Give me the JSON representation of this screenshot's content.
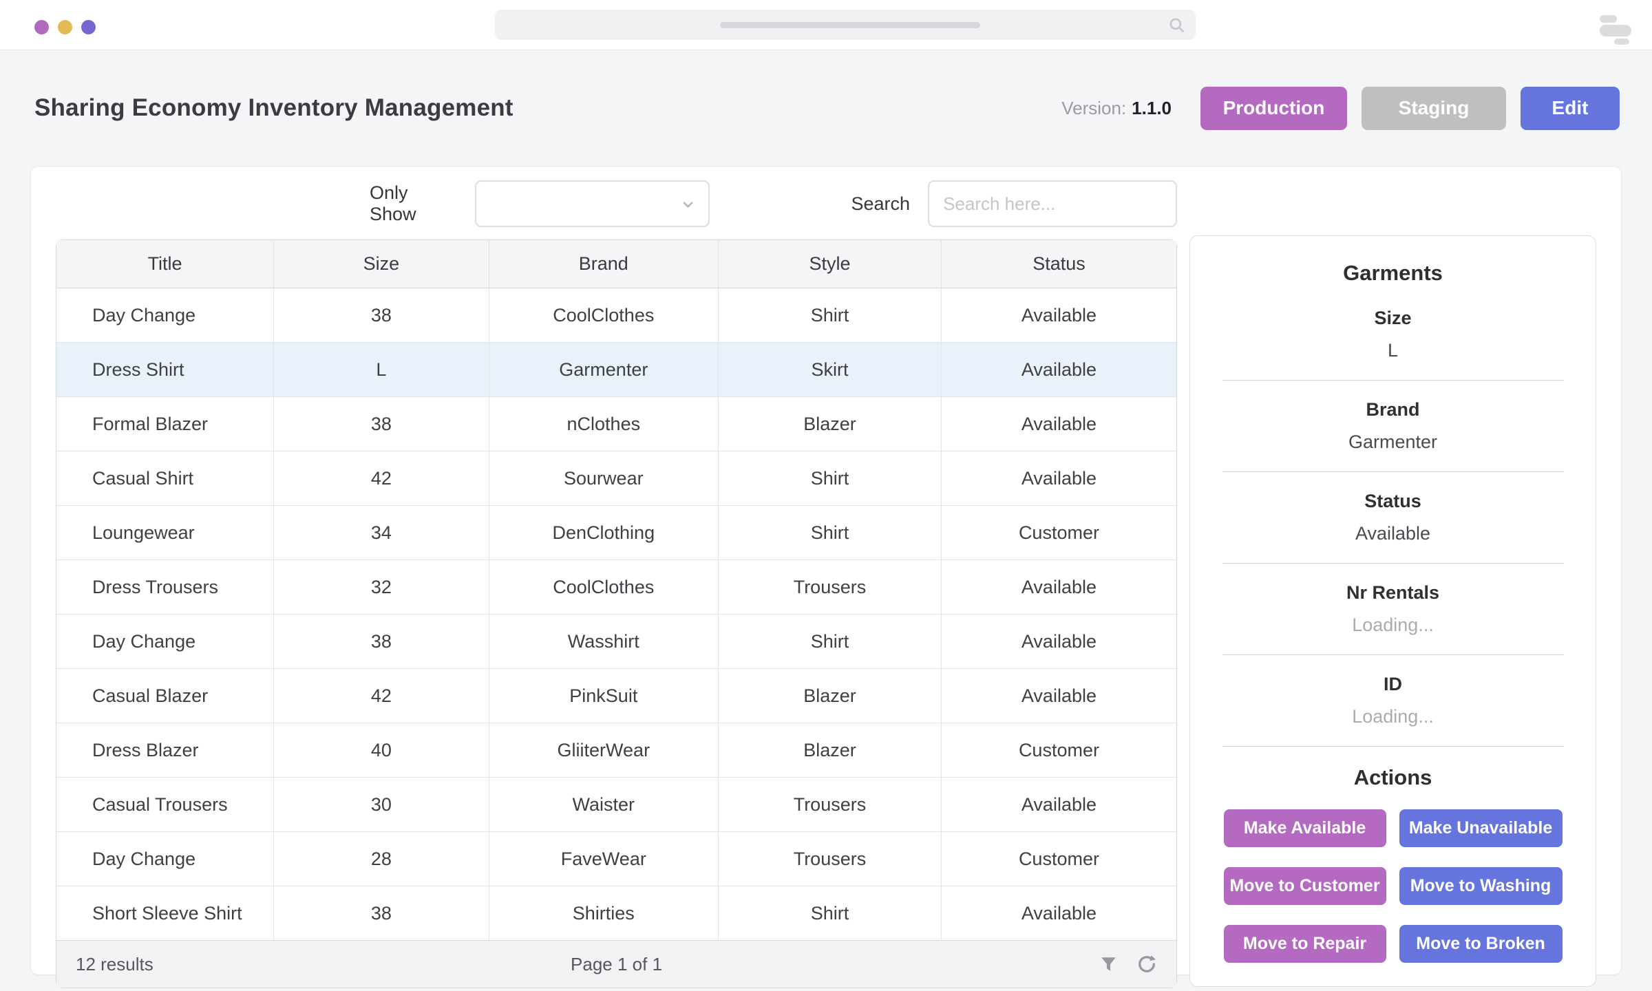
{
  "colors": {
    "purple": "#b46ac1",
    "indigo": "#6674de",
    "staging_gray": "#bfbfc2",
    "selected_row": "#e9f1fb",
    "dot_left": "#b169bd",
    "dot_middle": "#e2bb55",
    "dot_right": "#7568d2"
  },
  "header": {
    "title": "Sharing Economy Inventory Management",
    "version_label": "Version:",
    "version_value": "1.1.0",
    "production_button": "Production",
    "staging_button": "Staging",
    "edit_button": "Edit"
  },
  "filters": {
    "only_show_label": "Only Show",
    "search_label": "Search",
    "search_placeholder": "Search here..."
  },
  "table": {
    "columns": [
      "Title",
      "Size",
      "Brand",
      "Style",
      "Status"
    ],
    "rows": [
      {
        "title": "Day Change",
        "size": "38",
        "brand": "CoolClothes",
        "style": "Shirt",
        "status": "Available",
        "selected": false
      },
      {
        "title": "Dress Shirt",
        "size": "L",
        "brand": "Garmenter",
        "style": "Skirt",
        "status": "Available",
        "selected": true
      },
      {
        "title": "Formal Blazer",
        "size": "38",
        "brand": "nClothes",
        "style": "Blazer",
        "status": "Available",
        "selected": false
      },
      {
        "title": "Casual Shirt",
        "size": "42",
        "brand": "Sourwear",
        "style": "Shirt",
        "status": "Available",
        "selected": false
      },
      {
        "title": "Loungewear",
        "size": "34",
        "brand": "DenClothing",
        "style": "Shirt",
        "status": "Customer",
        "selected": false
      },
      {
        "title": "Dress Trousers",
        "size": "32",
        "brand": "CoolClothes",
        "style": "Trousers",
        "status": "Available",
        "selected": false
      },
      {
        "title": "Day Change",
        "size": "38",
        "brand": "Wasshirt",
        "style": "Shirt",
        "status": "Available",
        "selected": false
      },
      {
        "title": "Casual Blazer",
        "size": "42",
        "brand": "PinkSuit",
        "style": "Blazer",
        "status": "Available",
        "selected": false
      },
      {
        "title": "Dress Blazer",
        "size": "40",
        "brand": "GliiterWear",
        "style": "Blazer",
        "status": "Customer",
        "selected": false
      },
      {
        "title": "Casual Trousers",
        "size": "30",
        "brand": "Waister",
        "style": "Trousers",
        "status": "Available",
        "selected": false
      },
      {
        "title": "Day Change",
        "size": "28",
        "brand": "FaveWear",
        "style": "Trousers",
        "status": "Customer",
        "selected": false
      },
      {
        "title": "Short Sleeve Shirt",
        "size": "38",
        "brand": "Shirties",
        "style": "Shirt",
        "status": "Available",
        "selected": false
      }
    ],
    "results_text": "12 results",
    "page_text": "Page 1 of 1"
  },
  "panel": {
    "title": "Garments",
    "fields": [
      {
        "label": "Size",
        "value": "L",
        "loading": false
      },
      {
        "label": "Brand",
        "value": "Garmenter",
        "loading": false
      },
      {
        "label": "Status",
        "value": "Available",
        "loading": false
      },
      {
        "label": "Nr Rentals",
        "value": "Loading...",
        "loading": true
      },
      {
        "label": "ID",
        "value": "Loading...",
        "loading": true
      }
    ],
    "actions_title": "Actions",
    "actions": [
      {
        "label": "Make Available",
        "color": "purple"
      },
      {
        "label": "Make Unavailable",
        "color": "indigo"
      },
      {
        "label": "Move to Customer",
        "color": "purple"
      },
      {
        "label": "Move to Washing",
        "color": "indigo"
      },
      {
        "label": "Move to Repair",
        "color": "purple"
      },
      {
        "label": "Move to Broken",
        "color": "indigo"
      }
    ]
  }
}
